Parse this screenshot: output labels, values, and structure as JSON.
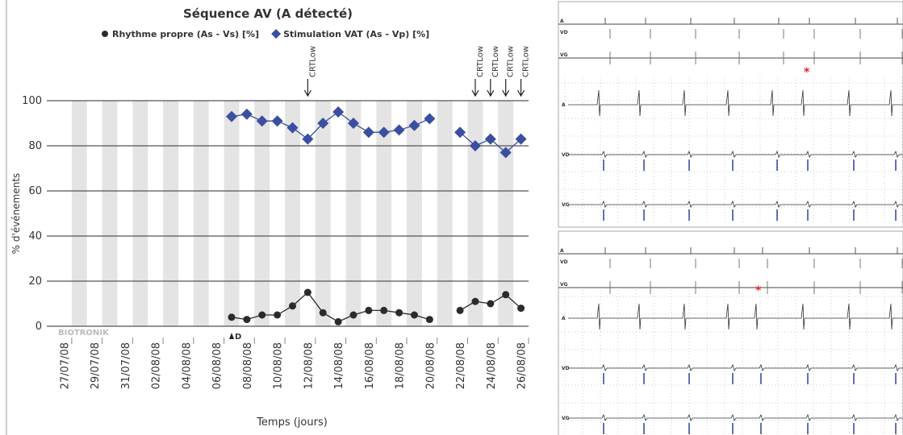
{
  "chart_data": {
    "type": "line",
    "title": "Séquence AV (A détecté)",
    "x_label": "Temps (jours)",
    "y_label": "% d'événements",
    "watermark": "BIOTRONIK",
    "categories": [
      "27/07/08",
      null,
      "29/07/08",
      null,
      "31/07/08",
      null,
      "02/08/08",
      null,
      "04/08/08",
      null,
      "06/08/08",
      null,
      "08/08/08",
      null,
      "10/08/08",
      null,
      "12/08/08",
      null,
      "14/08/08",
      null,
      "16/08/08",
      null,
      "18/08/08",
      null,
      "20/08/08",
      null,
      "22/08/08",
      null,
      "24/08/08",
      null,
      "26/08/08"
    ],
    "series": [
      {
        "name": "Rhythme propre (As - Vs) [%]",
        "color": "#2b2b2b",
        "marker": "circle",
        "values": [
          null,
          null,
          null,
          null,
          null,
          null,
          null,
          null,
          null,
          null,
          null,
          4,
          3,
          5,
          5,
          9,
          15,
          6,
          2,
          5,
          7,
          7,
          6,
          5,
          3,
          null,
          7,
          11,
          10,
          14,
          8
        ]
      },
      {
        "name": "Stimulation VAT (As - Vp) [%]",
        "color": "#3a4fa0",
        "marker": "diamond",
        "values": [
          null,
          null,
          null,
          null,
          null,
          null,
          null,
          null,
          null,
          null,
          null,
          93,
          94,
          91,
          91,
          88,
          83,
          90,
          95,
          90,
          86,
          86,
          87,
          89,
          92,
          null,
          86,
          80,
          83,
          77,
          83
        ]
      }
    ],
    "top_markers": [
      null,
      null,
      null,
      null,
      null,
      null,
      null,
      null,
      null,
      null,
      null,
      null,
      null,
      null,
      null,
      null,
      "CRTLow",
      null,
      null,
      null,
      null,
      null,
      null,
      null,
      null,
      null,
      null,
      "CRTLow",
      "CRTLow",
      "CRTLow",
      "CRTLow"
    ],
    "bottom_markers": [
      null,
      null,
      null,
      null,
      null,
      null,
      null,
      null,
      null,
      null,
      null,
      "D",
      null,
      null,
      null,
      null,
      null,
      null,
      null,
      null,
      null,
      null,
      null,
      null,
      null,
      null,
      null,
      null,
      null,
      null,
      null
    ],
    "ylim": [
      0,
      100
    ],
    "yticks": [
      0,
      20,
      40,
      60,
      80,
      100
    ],
    "grid": true
  },
  "ecg_panels": [
    {
      "marker_channels": [
        "A",
        "VD",
        "VG"
      ],
      "channels": [
        "A",
        "VD",
        "VG"
      ]
    },
    {
      "marker_channels": [
        "A",
        "VD",
        "VG"
      ],
      "channels": [
        "A",
        "VD",
        "VG"
      ]
    }
  ]
}
